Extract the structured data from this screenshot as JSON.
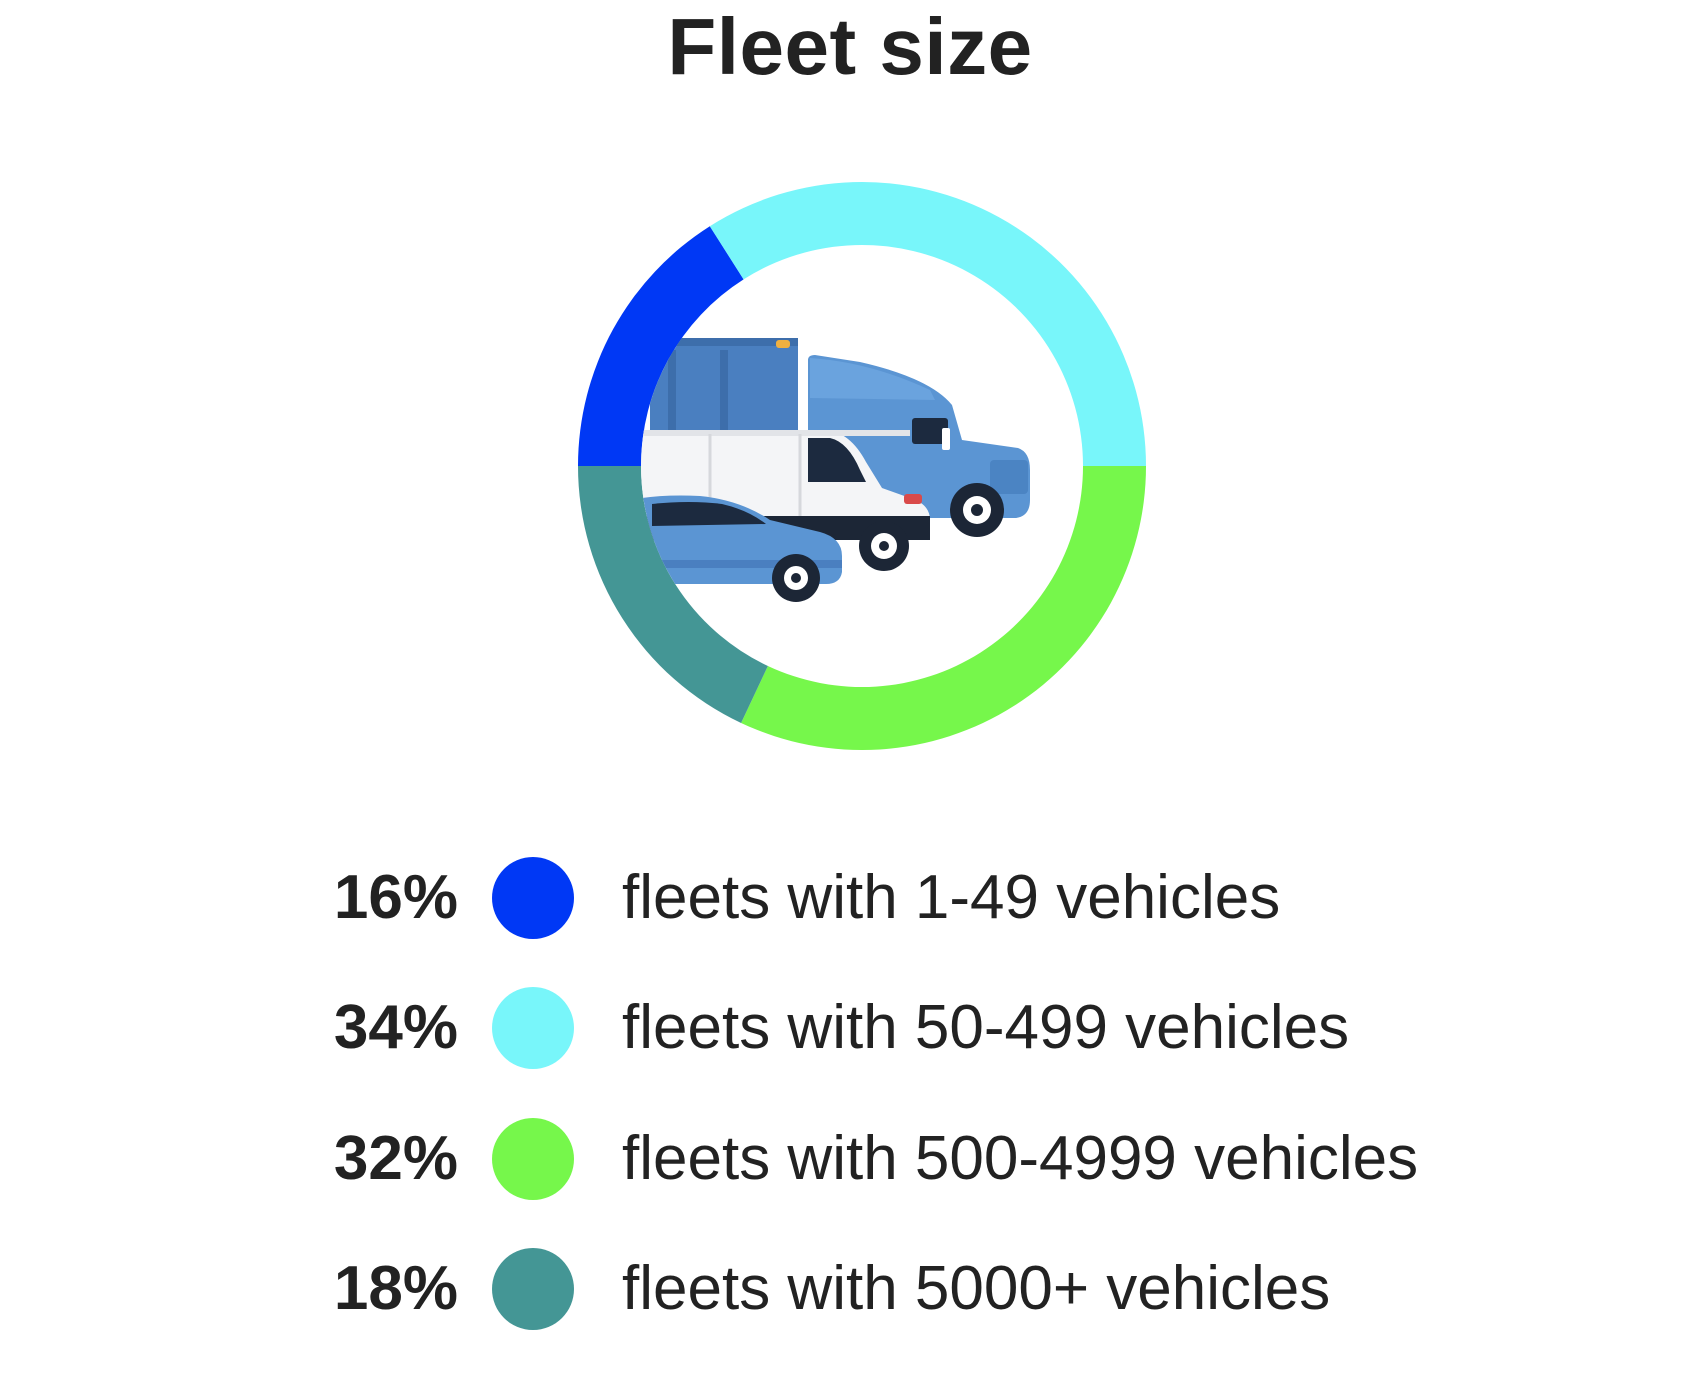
{
  "chart_data": {
    "type": "pie",
    "title": "Fleet size",
    "categories": [
      "fleets with 1-49 vehicles",
      "fleets with 50-499 vehicles",
      "fleets with 500-4999 vehicles",
      "fleets with 5000+ vehicles"
    ],
    "values": [
      16,
      34,
      32,
      18
    ],
    "value_labels": [
      "16%",
      "34%",
      "32%",
      "18%"
    ],
    "colors": [
      "#0038f5",
      "#78f6fa",
      "#76f74b",
      "#449695"
    ],
    "legend_position": "bottom",
    "style": "donut",
    "center_image": "fleet-vehicles-illustration"
  }
}
